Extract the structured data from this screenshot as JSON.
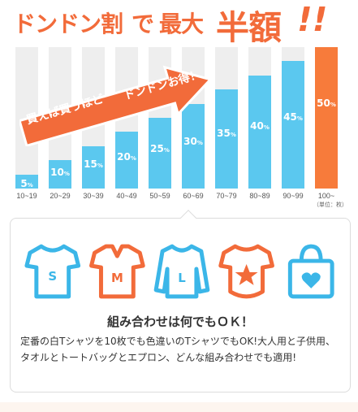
{
  "headline": {
    "part1": "ドンドン割",
    "part2": "で",
    "part3": "最大",
    "part4": "半額",
    "part5": "!!"
  },
  "banner": {
    "text1": "買えば買うほど",
    "text2": "ドンドンお得！"
  },
  "chart_data": {
    "type": "bar",
    "categories": [
      "10~19",
      "20~29",
      "30~39",
      "40~49",
      "50~59",
      "60~69",
      "70~79",
      "80~89",
      "90~99",
      "100~"
    ],
    "values": [
      5,
      10,
      15,
      20,
      25,
      30,
      35,
      40,
      45,
      50
    ],
    "value_labels": [
      "5",
      "10",
      "15",
      "20",
      "25",
      "30",
      "35",
      "40",
      "45",
      "50"
    ],
    "value_unit": "%",
    "unit_note": "（単位：枚）",
    "highlight_index": 9,
    "ylim": [
      0,
      50
    ],
    "colors": {
      "bar": "#5bc8ef",
      "highlight": "#f77b3b",
      "track": "#eeeeee"
    }
  },
  "card": {
    "icons": [
      "tshirt-s-icon",
      "polo-m-icon",
      "longsleeve-l-icon",
      "kids-star-icon",
      "tote-heart-icon"
    ],
    "icon_letters": [
      "S",
      "M",
      "L"
    ],
    "title": "組み合わせは何でもＯＫ！",
    "body": "定番の白Tシャツを10枚でも色違いのTシャツでもOK!大人用と子供用、タオルとトートバッグとエプロン、どんな組み合わせでも適用!"
  },
  "colors": {
    "orange": "#f26b3a",
    "blue": "#3bb6e8"
  }
}
